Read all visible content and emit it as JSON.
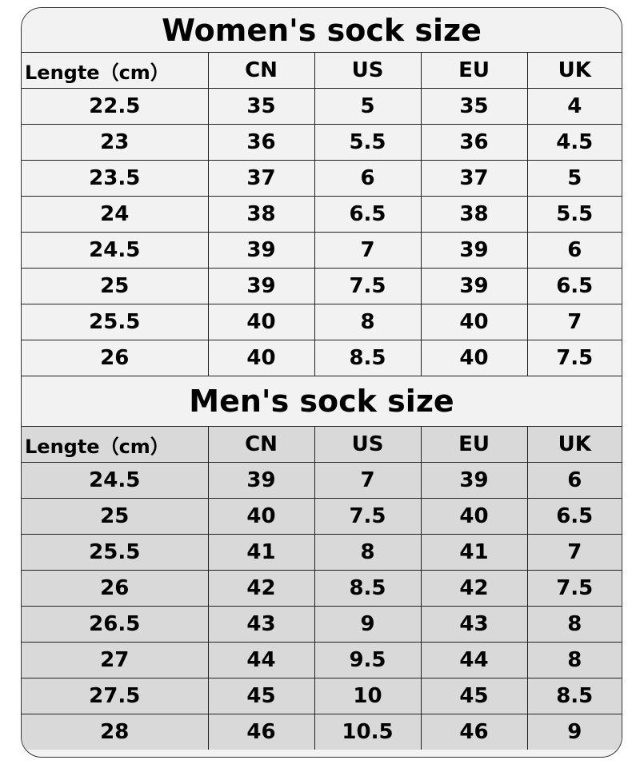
{
  "women": {
    "title": "Women's sock size",
    "headers": [
      "Lengte（cm）",
      "CN",
      "US",
      "EU",
      "UK"
    ],
    "rows": [
      [
        "22.5",
        "35",
        "5",
        "35",
        "4"
      ],
      [
        "23",
        "36",
        "5.5",
        "36",
        "4.5"
      ],
      [
        "23.5",
        "37",
        "6",
        "37",
        "5"
      ],
      [
        "24",
        "38",
        "6.5",
        "38",
        "5.5"
      ],
      [
        "24.5",
        "39",
        "7",
        "39",
        "6"
      ],
      [
        "25",
        "39",
        "7.5",
        "39",
        "6.5"
      ],
      [
        "25.5",
        "40",
        "8",
        "40",
        "7"
      ],
      [
        "26",
        "40",
        "8.5",
        "40",
        "7.5"
      ]
    ]
  },
  "men": {
    "title": "Men's sock size",
    "headers": [
      "Lengte（cm）",
      "CN",
      "US",
      "EU",
      "UK"
    ],
    "rows": [
      [
        "24.5",
        "39",
        "7",
        "39",
        "6"
      ],
      [
        "25",
        "40",
        "7.5",
        "40",
        "6.5"
      ],
      [
        "25.5",
        "41",
        "8",
        "41",
        "7"
      ],
      [
        "26",
        "42",
        "8.5",
        "42",
        "7.5"
      ],
      [
        "26.5",
        "43",
        "9",
        "43",
        "8"
      ],
      [
        "27",
        "44",
        "9.5",
        "44",
        "8"
      ],
      [
        "27.5",
        "45",
        "10",
        "45",
        "8.5"
      ],
      [
        "28",
        "46",
        "10.5",
        "46",
        "9"
      ]
    ]
  },
  "colors": {
    "women_bg": "#f2f2f2",
    "men_bg": "#d9d9d9",
    "border": "#222222"
  }
}
